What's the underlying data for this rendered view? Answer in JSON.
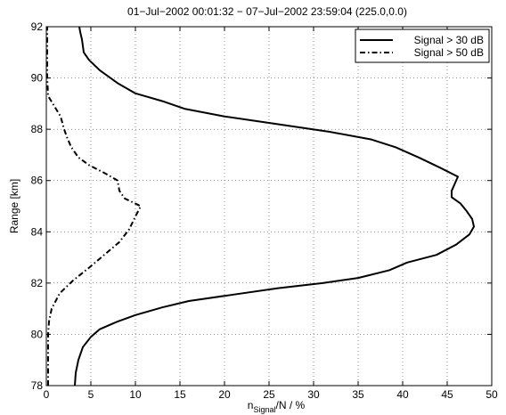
{
  "chart_data": {
    "type": "line",
    "title": "01−Jul−2002 00:01:32 − 07−Jul−2002 23:59:04 (225.0,0.0)",
    "xlabel": {
      "main": "n",
      "sub": "Signal",
      "rest": "/N / %"
    },
    "ylabel": "Range [km]",
    "xlim": [
      0,
      50
    ],
    "ylim": [
      78,
      92
    ],
    "xticks": [
      0,
      5,
      10,
      15,
      20,
      25,
      30,
      35,
      40,
      45,
      50
    ],
    "yticks": [
      78,
      80,
      82,
      84,
      86,
      88,
      90,
      92
    ],
    "grid": true,
    "legend_position": "top-right",
    "series": [
      {
        "name": "Signal > 30 dB",
        "style": "solid",
        "color": "#000000",
        "points": [
          [
            3.2,
            78.0
          ],
          [
            3.3,
            78.5
          ],
          [
            3.6,
            79.0
          ],
          [
            4.1,
            79.5
          ],
          [
            5.0,
            79.9
          ],
          [
            6.0,
            80.2
          ],
          [
            8.0,
            80.5
          ],
          [
            10.0,
            80.75
          ],
          [
            13.0,
            81.05
          ],
          [
            16.0,
            81.3
          ],
          [
            21.0,
            81.55
          ],
          [
            26.0,
            81.8
          ],
          [
            31.0,
            82.0
          ],
          [
            35.0,
            82.2
          ],
          [
            38.5,
            82.5
          ],
          [
            40.5,
            82.8
          ],
          [
            43.8,
            83.1
          ],
          [
            46.0,
            83.5
          ],
          [
            47.5,
            83.9
          ],
          [
            48.0,
            84.2
          ],
          [
            47.8,
            84.5
          ],
          [
            47.2,
            84.8
          ],
          [
            46.5,
            85.1
          ],
          [
            45.5,
            85.35
          ],
          [
            45.5,
            85.6
          ],
          [
            46.2,
            86.15
          ],
          [
            44.2,
            86.5
          ],
          [
            41.8,
            86.9
          ],
          [
            39.2,
            87.3
          ],
          [
            36.5,
            87.6
          ],
          [
            31.8,
            87.9
          ],
          [
            25.0,
            88.25
          ],
          [
            20.0,
            88.5
          ],
          [
            15.5,
            88.8
          ],
          [
            13.0,
            89.1
          ],
          [
            10.0,
            89.4
          ],
          [
            8.0,
            89.8
          ],
          [
            6.0,
            90.3
          ],
          [
            4.8,
            90.7
          ],
          [
            4.2,
            91.0
          ],
          [
            4.0,
            91.5
          ],
          [
            3.8,
            91.8
          ],
          [
            3.7,
            92.0
          ]
        ]
      },
      {
        "name": "Signal > 50 dB",
        "style": "dashdot",
        "color": "#000000",
        "points": [
          [
            0.2,
            78.0
          ],
          [
            0.2,
            79.0
          ],
          [
            0.2,
            80.0
          ],
          [
            0.3,
            80.5
          ],
          [
            0.6,
            81.0
          ],
          [
            1.5,
            81.6
          ],
          [
            3.0,
            82.1
          ],
          [
            4.8,
            82.6
          ],
          [
            6.5,
            83.1
          ],
          [
            8.2,
            83.6
          ],
          [
            9.3,
            84.1
          ],
          [
            10.0,
            84.6
          ],
          [
            10.6,
            85.0
          ],
          [
            8.8,
            85.3
          ],
          [
            8.2,
            85.6
          ],
          [
            8.0,
            86.0
          ],
          [
            6.5,
            86.3
          ],
          [
            4.8,
            86.6
          ],
          [
            3.6,
            86.9
          ],
          [
            2.8,
            87.3
          ],
          [
            2.3,
            87.7
          ],
          [
            2.0,
            88.0
          ],
          [
            1.6,
            88.5
          ],
          [
            0.9,
            88.9
          ],
          [
            0.2,
            89.3
          ],
          [
            0.1,
            90.0
          ],
          [
            0.1,
            91.0
          ],
          [
            0.1,
            92.0
          ]
        ]
      }
    ]
  }
}
